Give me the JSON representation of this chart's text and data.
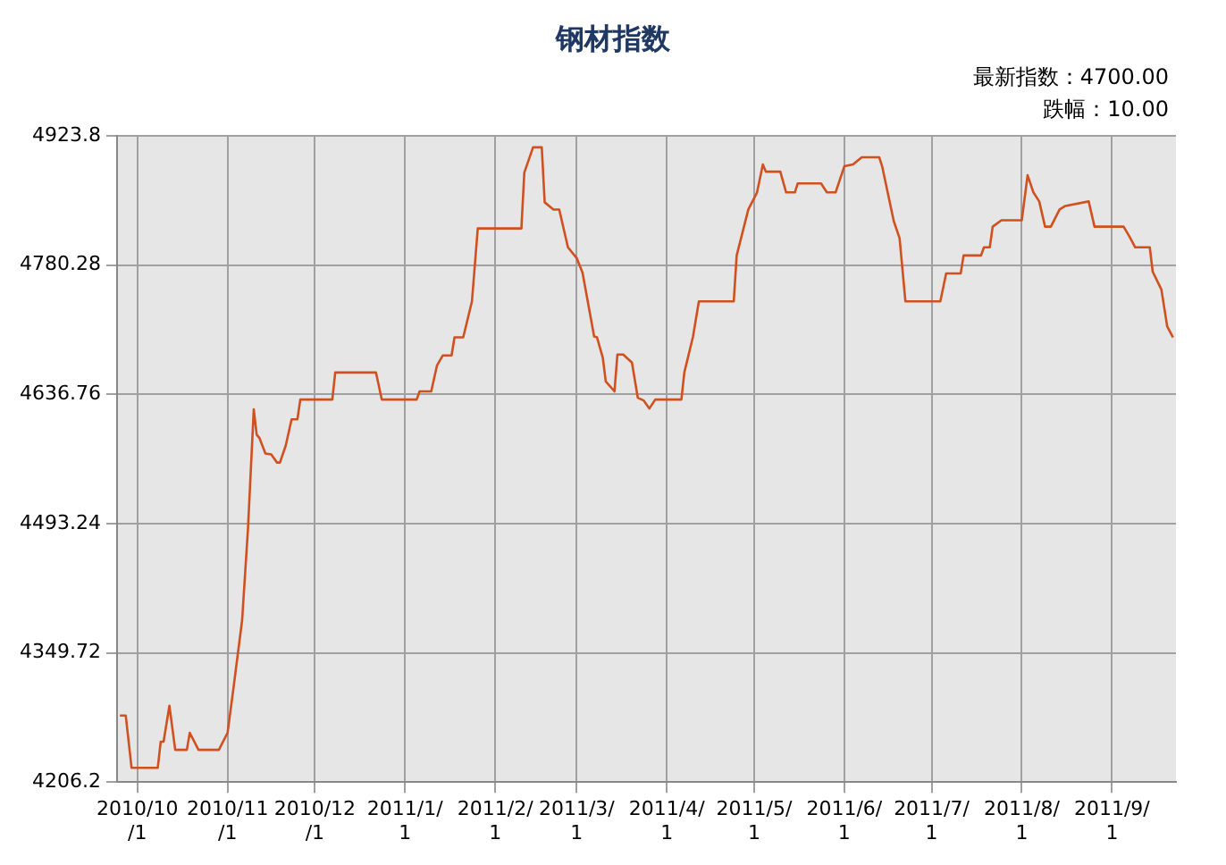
{
  "chart_data": {
    "type": "line",
    "title": "钢材指数",
    "x": [
      "2010-09-25",
      "2010-09-27",
      "2010-09-29",
      "2010-10-08",
      "2010-10-09",
      "2010-10-10",
      "2010-10-12",
      "2010-10-14",
      "2010-10-18",
      "2010-10-19",
      "2010-10-22",
      "2010-10-29",
      "2010-11-01",
      "2010-11-03",
      "2010-11-06",
      "2010-11-08",
      "2010-11-10",
      "2010-11-11",
      "2010-11-12",
      "2010-11-14",
      "2010-11-16",
      "2010-11-18",
      "2010-11-19",
      "2010-11-21",
      "2010-11-23",
      "2010-11-25",
      "2010-11-26",
      "2010-12-07",
      "2010-12-08",
      "2010-12-22",
      "2010-12-24",
      "2011-01-05",
      "2011-01-06",
      "2011-01-10",
      "2011-01-12",
      "2011-01-14",
      "2011-01-17",
      "2011-01-18",
      "2011-01-21",
      "2011-01-24",
      "2011-01-26",
      "2011-02-10",
      "2011-02-11",
      "2011-02-14",
      "2011-02-17",
      "2011-02-18",
      "2011-02-21",
      "2011-02-23",
      "2011-02-26",
      "2011-03-01",
      "2011-03-03",
      "2011-03-07",
      "2011-03-08",
      "2011-03-10",
      "2011-03-11",
      "2011-03-14",
      "2011-03-15",
      "2011-03-17",
      "2011-03-20",
      "2011-03-22",
      "2011-03-24",
      "2011-03-26",
      "2011-03-28",
      "2011-04-06",
      "2011-04-07",
      "2011-04-10",
      "2011-04-12",
      "2011-04-24",
      "2011-04-25",
      "2011-04-29",
      "2011-05-02",
      "2011-05-04",
      "2011-05-05",
      "2011-05-10",
      "2011-05-12",
      "2011-05-15",
      "2011-05-16",
      "2011-05-24",
      "2011-05-26",
      "2011-05-29",
      "2011-06-01",
      "2011-06-04",
      "2011-06-07",
      "2011-06-13",
      "2011-06-14",
      "2011-06-18",
      "2011-06-20",
      "2011-06-22",
      "2011-07-04",
      "2011-07-06",
      "2011-07-11",
      "2011-07-12",
      "2011-07-18",
      "2011-07-19",
      "2011-07-21",
      "2011-07-22",
      "2011-07-25",
      "2011-08-01",
      "2011-08-03",
      "2011-08-05",
      "2011-08-07",
      "2011-08-09",
      "2011-08-11",
      "2011-08-14",
      "2011-08-16",
      "2011-08-24",
      "2011-08-26",
      "2011-09-05",
      "2011-09-07",
      "2011-09-09",
      "2011-09-14",
      "2011-09-15",
      "2011-09-18",
      "2011-09-20",
      "2011-09-22"
    ],
    "series": [
      {
        "color": "#d0501f",
        "values": [
          4280,
          4280,
          4222,
          4222,
          4251,
          4251,
          4291,
          4242,
          4242,
          4261,
          4242,
          4242,
          4261,
          4310,
          4386,
          4487,
          4620,
          4592,
          4588,
          4571,
          4570,
          4561,
          4561,
          4580,
          4609,
          4609,
          4631,
          4631,
          4661,
          4661,
          4631,
          4631,
          4640,
          4640,
          4669,
          4680,
          4680,
          4700,
          4700,
          4740,
          4821,
          4821,
          4883,
          4911,
          4911,
          4850,
          4842,
          4842,
          4800,
          4788,
          4772,
          4701,
          4700,
          4677,
          4651,
          4640,
          4681,
          4681,
          4672,
          4633,
          4630,
          4621,
          4631,
          4631,
          4661,
          4701,
          4740,
          4740,
          4791,
          4842,
          4861,
          4892,
          4884,
          4884,
          4861,
          4861,
          4871,
          4871,
          4861,
          4861,
          4890,
          4892,
          4900,
          4900,
          4890,
          4829,
          4810,
          4740,
          4740,
          4771,
          4771,
          4791,
          4791,
          4800,
          4800,
          4823,
          4830,
          4830,
          4880,
          4861,
          4851,
          4823,
          4823,
          4842,
          4846,
          4851,
          4823,
          4823,
          4812,
          4800,
          4800,
          4773,
          4753,
          4712,
          4700
        ]
      }
    ],
    "xlim": [
      "2010-09-24",
      "2011-09-23"
    ],
    "xticks": [
      {
        "value": "2010-10-01",
        "label": "2010/10/1"
      },
      {
        "value": "2010-11-01",
        "label": "2010/11/1"
      },
      {
        "value": "2010-12-01",
        "label": "2010/12/1"
      },
      {
        "value": "2011-01-01",
        "label": "2011/1/1"
      },
      {
        "value": "2011-02-01",
        "label": "2011/2/1"
      },
      {
        "value": "2011-03-01",
        "label": "2011/3/1"
      },
      {
        "value": "2011-04-01",
        "label": "2011/4/1"
      },
      {
        "value": "2011-05-01",
        "label": "2011/5/1"
      },
      {
        "value": "2011-06-01",
        "label": "2011/6/1"
      },
      {
        "value": "2011-07-01",
        "label": "2011/7/1"
      },
      {
        "value": "2011-08-01",
        "label": "2011/8/1"
      },
      {
        "value": "2011-09-01",
        "label": "2011/9/1"
      }
    ],
    "ylim": [
      4206.2,
      4923.8
    ],
    "yticks": [
      4206.2,
      4349.72,
      4493.24,
      4636.76,
      4780.28,
      4923.8
    ],
    "grid": true,
    "legend": false,
    "marker": "none",
    "line_style": "solid",
    "annotations": [
      "最新指数：4700.00",
      "跌幅：10.00"
    ]
  }
}
